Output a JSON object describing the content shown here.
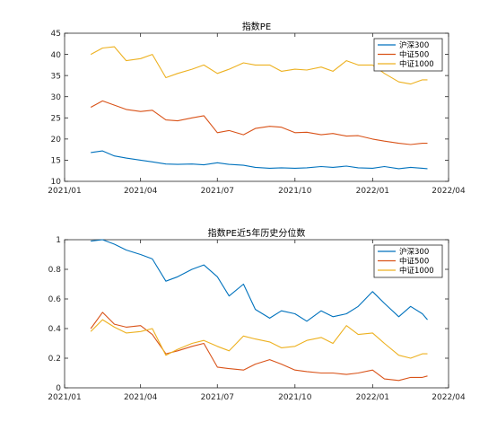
{
  "chart_data": [
    {
      "type": "line",
      "title": "指数PE",
      "xlabel": "",
      "ylabel": "",
      "xlim": [
        "2021-01",
        "2022-04"
      ],
      "ylim": [
        10,
        45
      ],
      "x_ticks": [
        "2021/01",
        "2021/04",
        "2021/07",
        "2021/10",
        "2022/01",
        "2022/04"
      ],
      "y_ticks": [
        "10",
        "15",
        "20",
        "25",
        "30",
        "35",
        "40",
        "45"
      ],
      "legend_position": "top-right",
      "grid": false,
      "x": [
        "2021-02-01",
        "2021-02-15",
        "2021-03-01",
        "2021-03-15",
        "2021-04-01",
        "2021-04-15",
        "2021-05-01",
        "2021-05-15",
        "2021-06-01",
        "2021-06-15",
        "2021-07-01",
        "2021-07-15",
        "2021-08-01",
        "2021-08-15",
        "2021-09-01",
        "2021-09-15",
        "2021-10-01",
        "2021-10-15",
        "2021-11-01",
        "2021-11-15",
        "2021-12-01",
        "2021-12-15",
        "2022-01-01",
        "2022-01-15",
        "2022-02-01",
        "2022-02-15",
        "2022-03-01",
        "2022-03-07"
      ],
      "series": [
        {
          "name": "沪深300",
          "color": "#0072BD",
          "values": [
            16.8,
            17.2,
            16.0,
            15.5,
            15.0,
            14.6,
            14.1,
            14.0,
            14.1,
            13.9,
            14.4,
            14.0,
            13.8,
            13.3,
            13.1,
            13.2,
            13.1,
            13.2,
            13.5,
            13.3,
            13.6,
            13.2,
            13.1,
            13.5,
            13.0,
            13.3,
            13.1,
            13.0
          ]
        },
        {
          "name": "中证500",
          "color": "#D95319",
          "values": [
            27.5,
            29.0,
            28.0,
            27.0,
            26.5,
            26.8,
            24.5,
            24.3,
            25.0,
            25.5,
            21.5,
            22.0,
            21.0,
            22.5,
            23.0,
            22.8,
            21.5,
            21.6,
            21.0,
            21.3,
            20.7,
            20.8,
            20.0,
            19.5,
            19.0,
            18.7,
            19.0,
            19.0
          ]
        },
        {
          "name": "中证1000",
          "color": "#EDB120",
          "values": [
            40.0,
            41.5,
            41.8,
            38.5,
            39.0,
            40.0,
            34.5,
            35.5,
            36.5,
            37.5,
            35.5,
            36.5,
            38.0,
            37.5,
            37.5,
            36.0,
            36.5,
            36.3,
            37.0,
            36.0,
            38.5,
            37.5,
            37.5,
            35.5,
            33.5,
            33.0,
            34.0,
            34.0
          ]
        }
      ]
    },
    {
      "type": "line",
      "title": "指数PE近5年历史分位数",
      "xlabel": "",
      "ylabel": "",
      "xlim": [
        "2021-01",
        "2022-04"
      ],
      "ylim": [
        0,
        1
      ],
      "x_ticks": [
        "2021/01",
        "2021/04",
        "2021/07",
        "2021/10",
        "2022/01",
        "2022/04"
      ],
      "y_ticks": [
        "0",
        "0.2",
        "0.4",
        "0.6",
        "0.8",
        "1"
      ],
      "legend_position": "top-right",
      "grid": false,
      "x": [
        "2021-02-01",
        "2021-02-15",
        "2021-03-01",
        "2021-03-15",
        "2021-04-01",
        "2021-04-15",
        "2021-05-01",
        "2021-05-15",
        "2021-06-01",
        "2021-06-15",
        "2021-07-01",
        "2021-07-15",
        "2021-08-01",
        "2021-08-15",
        "2021-09-01",
        "2021-09-15",
        "2021-10-01",
        "2021-10-15",
        "2021-11-01",
        "2021-11-15",
        "2021-12-01",
        "2021-12-15",
        "2022-01-01",
        "2022-01-15",
        "2022-02-01",
        "2022-02-15",
        "2022-03-01",
        "2022-03-07"
      ],
      "series": [
        {
          "name": "沪深300",
          "color": "#0072BD",
          "values": [
            0.99,
            1.0,
            0.97,
            0.93,
            0.9,
            0.87,
            0.72,
            0.75,
            0.8,
            0.83,
            0.75,
            0.62,
            0.7,
            0.53,
            0.47,
            0.52,
            0.5,
            0.45,
            0.52,
            0.48,
            0.5,
            0.55,
            0.65,
            0.57,
            0.48,
            0.55,
            0.5,
            0.46
          ]
        },
        {
          "name": "中证500",
          "color": "#D95319",
          "values": [
            0.4,
            0.51,
            0.43,
            0.41,
            0.42,
            0.36,
            0.23,
            0.25,
            0.28,
            0.3,
            0.14,
            0.13,
            0.12,
            0.16,
            0.19,
            0.16,
            0.12,
            0.11,
            0.1,
            0.1,
            0.09,
            0.1,
            0.12,
            0.06,
            0.05,
            0.07,
            0.07,
            0.08
          ]
        },
        {
          "name": "中证1000",
          "color": "#EDB120",
          "values": [
            0.38,
            0.46,
            0.41,
            0.37,
            0.38,
            0.4,
            0.22,
            0.26,
            0.3,
            0.32,
            0.28,
            0.25,
            0.35,
            0.33,
            0.31,
            0.27,
            0.28,
            0.32,
            0.34,
            0.3,
            0.42,
            0.36,
            0.37,
            0.3,
            0.22,
            0.2,
            0.23,
            0.23
          ]
        }
      ]
    }
  ]
}
